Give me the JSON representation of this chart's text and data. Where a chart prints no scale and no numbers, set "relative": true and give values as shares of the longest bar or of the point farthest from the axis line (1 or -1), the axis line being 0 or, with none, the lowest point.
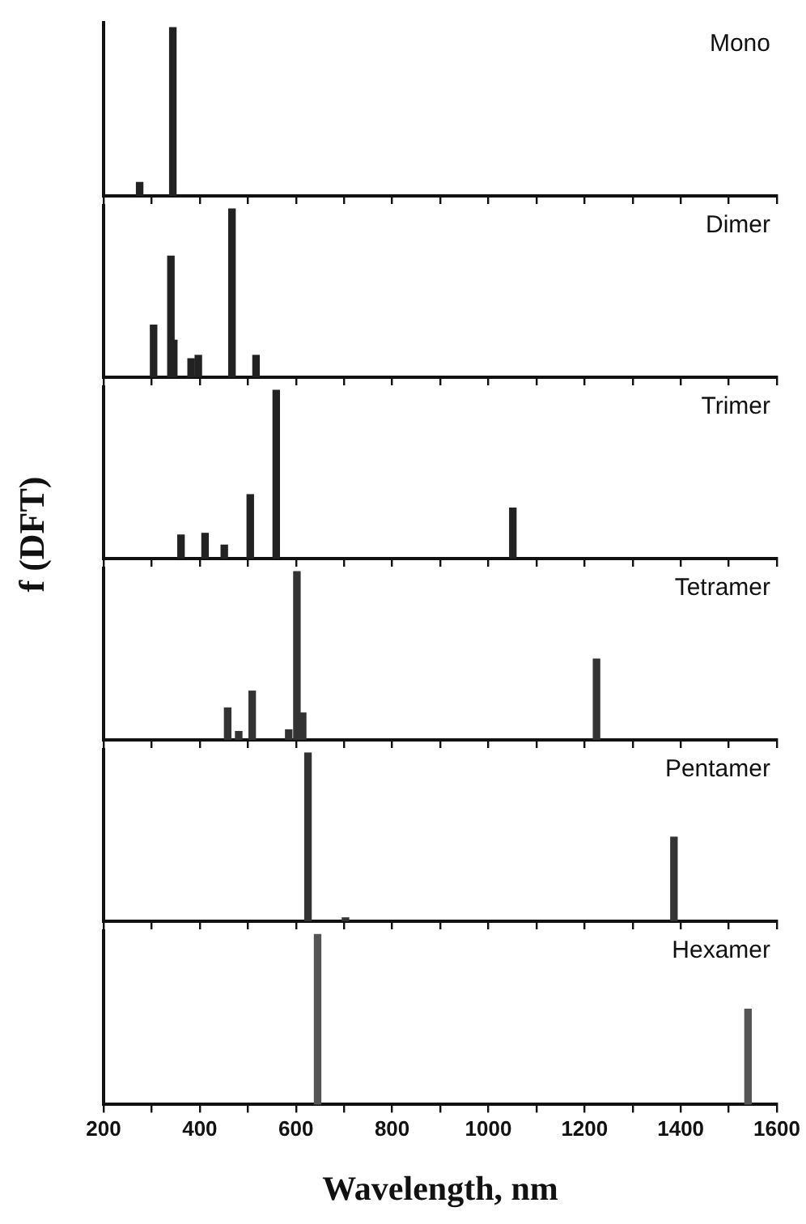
{
  "chart_data": [
    {
      "type": "bar",
      "title": "Mono",
      "relative": true,
      "x": [
        275,
        344
      ],
      "values": [
        0.08,
        1
      ],
      "color": "#222222",
      "xlim": [
        200,
        1600
      ],
      "xticks": [
        200,
        {
          "value": 300,
          "label": null
        },
        400,
        {
          "value": 500,
          "label": null
        },
        600,
        {
          "value": 700,
          "label": null
        },
        800,
        {
          "value": 900,
          "label": null
        },
        1000,
        {
          "value": 1100,
          "label": null
        },
        1200,
        {
          "value": 1300,
          "label": null
        },
        1400,
        {
          "value": 1500,
          "label": null
        },
        1600
      ],
      "tick_labels": false,
      "grid": false,
      "legend": false
    },
    {
      "type": "bar",
      "title": "Dimer",
      "relative": true,
      "x": [
        304,
        340,
        346,
        382,
        397,
        467,
        517
      ],
      "values": [
        0.31,
        0.72,
        0.22,
        0.11,
        0.13,
        1,
        0.13
      ],
      "color": "#222222",
      "xlim": [
        200,
        1600
      ],
      "xticks": [
        200,
        {
          "value": 300,
          "label": null
        },
        400,
        {
          "value": 500,
          "label": null
        },
        600,
        {
          "value": 700,
          "label": null
        },
        800,
        {
          "value": 900,
          "label": null
        },
        1000,
        {
          "value": 1100,
          "label": null
        },
        1200,
        {
          "value": 1300,
          "label": null
        },
        1400,
        {
          "value": 1500,
          "label": null
        },
        1600
      ],
      "tick_labels": false,
      "grid": false,
      "legend": false
    },
    {
      "type": "bar",
      "title": "Trimer",
      "ylabel": "f (DFT)",
      "relative": true,
      "x": [
        361,
        411,
        451,
        505,
        559,
        1051
      ],
      "values": [
        0.14,
        0.15,
        0.08,
        0.38,
        1,
        0.3
      ],
      "color": "#222222",
      "xlim": [
        200,
        1600
      ],
      "xticks": [
        200,
        {
          "value": 300,
          "label": null
        },
        400,
        {
          "value": 500,
          "label": null
        },
        600,
        {
          "value": 700,
          "label": null
        },
        800,
        {
          "value": 900,
          "label": null
        },
        1000,
        {
          "value": 1100,
          "label": null
        },
        1200,
        {
          "value": 1300,
          "label": null
        },
        1400,
        {
          "value": 1500,
          "label": null
        },
        1600
      ],
      "tick_labels": false,
      "grid": false,
      "legend": false
    },
    {
      "type": "bar",
      "title": "Tetramer",
      "relative": true,
      "x": [
        458,
        481,
        509,
        585,
        602,
        614,
        1225
      ],
      "values": [
        0.19,
        0.05,
        0.29,
        0.06,
        1,
        0.16,
        0.48
      ],
      "color": "#333333",
      "xlim": [
        200,
        1600
      ],
      "xticks": [
        200,
        {
          "value": 300,
          "label": null
        },
        400,
        {
          "value": 500,
          "label": null
        },
        600,
        {
          "value": 700,
          "label": null
        },
        800,
        {
          "value": 900,
          "label": null
        },
        1000,
        {
          "value": 1100,
          "label": null
        },
        1200,
        {
          "value": 1300,
          "label": null
        },
        1400,
        {
          "value": 1500,
          "label": null
        },
        1600
      ],
      "tick_labels": false,
      "grid": false,
      "legend": false
    },
    {
      "type": "bar",
      "title": "Pentamer",
      "relative": true,
      "x": [
        625,
        703,
        1386
      ],
      "values": [
        1,
        0.02,
        0.5
      ],
      "color": "#333333",
      "xlim": [
        200,
        1600
      ],
      "xticks": [
        200,
        {
          "value": 300,
          "label": null
        },
        400,
        {
          "value": 500,
          "label": null
        },
        600,
        {
          "value": 700,
          "label": null
        },
        800,
        {
          "value": 900,
          "label": null
        },
        1000,
        {
          "value": 1100,
          "label": null
        },
        1200,
        {
          "value": 1300,
          "label": null
        },
        1400,
        {
          "value": 1500,
          "label": null
        },
        1600
      ],
      "tick_labels": false,
      "grid": false,
      "legend": false
    },
    {
      "type": "bar",
      "title": "Hexamer",
      "xlabel": "Wavelength, nm",
      "relative": true,
      "x": [
        645,
        1540
      ],
      "values": [
        1,
        0.56
      ],
      "color": "#555555",
      "xlim": [
        200,
        1600
      ],
      "xticks": [
        200,
        {
          "value": 300,
          "label": null
        },
        400,
        {
          "value": 500,
          "label": null
        },
        600,
        {
          "value": 700,
          "label": null
        },
        800,
        {
          "value": 900,
          "label": null
        },
        1000,
        {
          "value": 1100,
          "label": null
        },
        1200,
        {
          "value": 1300,
          "label": null
        },
        1400,
        {
          "value": 1500,
          "label": null
        },
        1600
      ],
      "tick_labels": "x",
      "grid": false,
      "legend": false
    }
  ]
}
